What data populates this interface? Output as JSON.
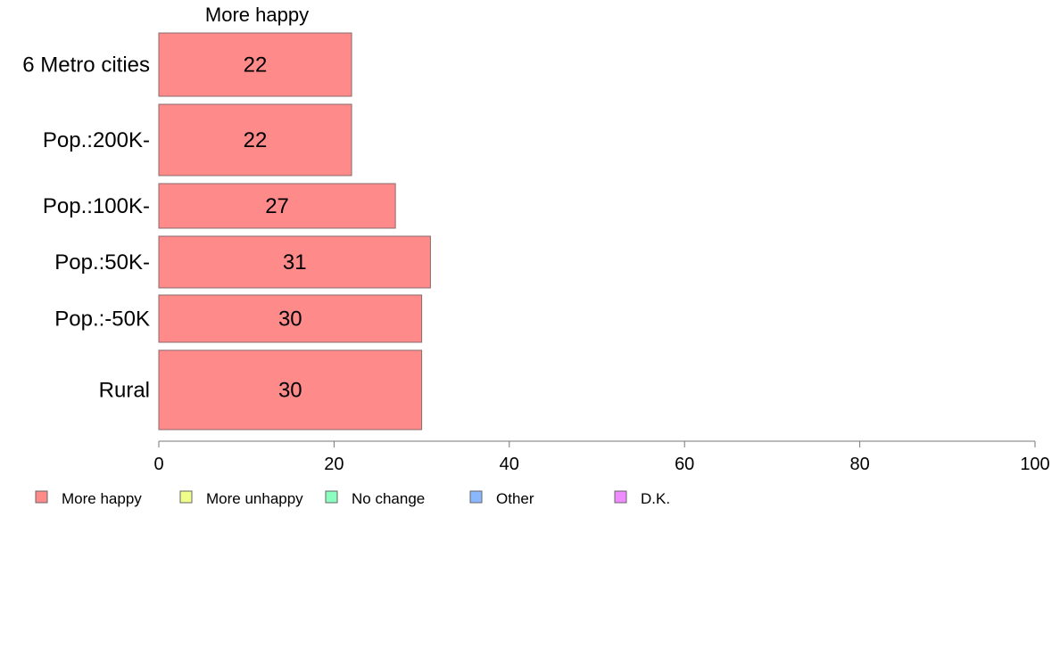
{
  "chart_data": {
    "type": "bar",
    "orientation": "horizontal",
    "title": "More happy",
    "categories": [
      "6 Metro cities",
      "Pop.:200K-",
      "Pop.:100K-",
      "Pop.:50K-",
      "Pop.:-50K",
      "Rural"
    ],
    "series": [
      {
        "name": "More happy",
        "values": [
          22,
          22,
          27,
          31,
          30,
          30
        ]
      }
    ],
    "xlim": [
      0,
      100
    ],
    "xticks": [
      0,
      20,
      40,
      60,
      80,
      100
    ],
    "grid": false,
    "legend": {
      "placement": "bottom-left",
      "entries": [
        {
          "label": "More happy",
          "color": "#ff8a8a"
        },
        {
          "label": "More unhappy",
          "color": "#f0ff8a"
        },
        {
          "label": "No change",
          "color": "#8affc0"
        },
        {
          "label": "Other",
          "color": "#8ab8ff"
        },
        {
          "label": "D.K.",
          "color": "#f08aff"
        }
      ]
    },
    "bar_color": "#ff8a8a"
  }
}
